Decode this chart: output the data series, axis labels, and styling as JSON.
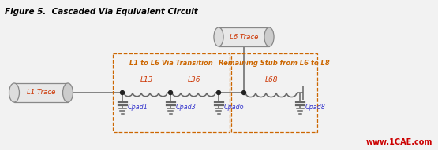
{
  "title": "Figure 5.  Cascaded Via Equivalent Circuit",
  "title_color": "#000000",
  "title_fontsize": 7.5,
  "title_style": "italic",
  "title_weight": "bold",
  "fig_bg": "#f2f2f2",
  "box1_label": "L1 to L6 Via Transition",
  "box2_label": "Remaining Stub from L6 to L8",
  "box_color": "#cc6600",
  "inductor_labels": [
    "L13",
    "L36",
    "L68"
  ],
  "cap_labels": [
    "Cpad1",
    "Cpad3",
    "Cpad6",
    "Cpad8"
  ],
  "trace_labels": [
    "L1 Trace",
    "L6 Trace"
  ],
  "watermark": "www.1CAE.com",
  "watermark_color": "#cc0000",
  "line_color": "#666666",
  "label_color": "#cc3300",
  "cap_label_color": "#3333cc"
}
